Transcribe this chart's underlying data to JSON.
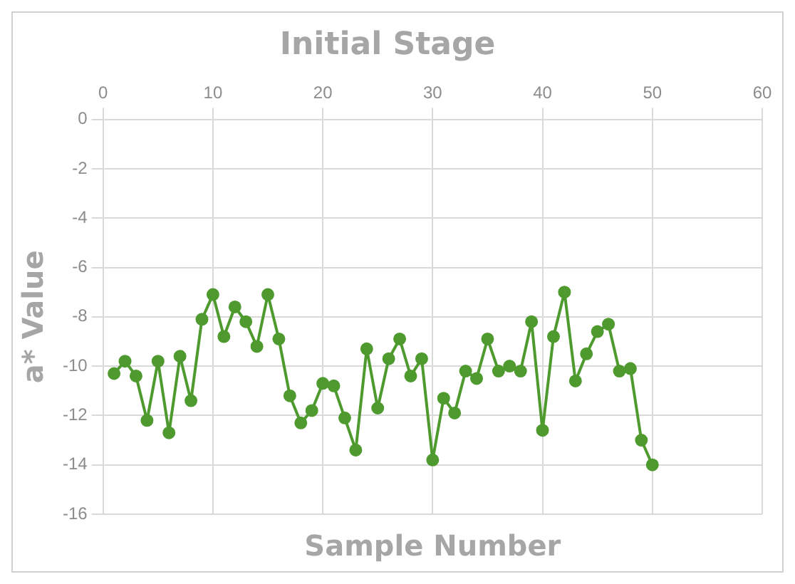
{
  "chart_data": {
    "type": "line",
    "title": "Initial Stage",
    "xlabel": "Sample Number",
    "ylabel": "a* Value",
    "x": [
      1,
      2,
      3,
      4,
      5,
      6,
      7,
      8,
      9,
      10,
      11,
      12,
      13,
      14,
      15,
      16,
      17,
      18,
      19,
      20,
      21,
      22,
      23,
      24,
      25,
      26,
      27,
      28,
      29,
      30,
      31,
      32,
      33,
      34,
      35,
      36,
      37,
      38,
      39,
      40,
      41,
      42,
      43,
      44,
      45,
      46,
      47,
      48,
      49,
      50
    ],
    "series": [
      {
        "color": "#4e9a2e",
        "values": [
          -10.3,
          -9.8,
          -10.4,
          -12.2,
          -9.8,
          -12.7,
          -9.6,
          -11.4,
          -8.1,
          -7.1,
          -8.8,
          -7.6,
          -8.2,
          -9.2,
          -7.1,
          -8.9,
          -11.2,
          -12.3,
          -11.8,
          -10.7,
          -10.8,
          -12.1,
          -13.4,
          -9.3,
          -11.7,
          -9.7,
          -8.9,
          -10.4,
          -9.7,
          -13.8,
          -11.3,
          -11.9,
          -10.2,
          -10.5,
          -8.9,
          -10.2,
          -10.0,
          -10.2,
          -8.2,
          -12.6,
          -8.8,
          -7.0,
          -10.6,
          -9.5,
          -8.6,
          -8.3,
          -10.2,
          -10.1,
          -13.0,
          -14.0
        ]
      }
    ],
    "xlim": [
      0,
      60
    ],
    "xticks": [
      0,
      10,
      20,
      30,
      40,
      50,
      60
    ],
    "ylim": [
      -16,
      0
    ],
    "yticks": [
      -16,
      -14,
      -12,
      -10,
      -8,
      -6,
      -4,
      -2,
      0
    ],
    "grid": true,
    "legend": false,
    "marker": "circle",
    "line_style": "solid"
  }
}
